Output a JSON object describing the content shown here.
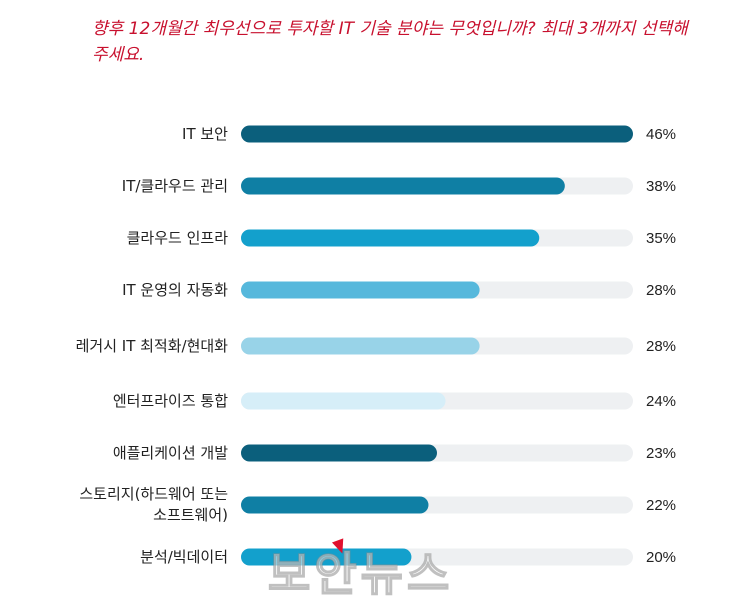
{
  "question": "향후 12개월간 최우선으로 투자할 IT 기술 분야는 무엇입니까? 최대 3개까지 선택해주세요.",
  "watermark": "보안뉴스",
  "chart_data": {
    "type": "bar",
    "orientation": "horizontal",
    "categories": [
      [
        "IT 보안"
      ],
      [
        "IT/클라우드 관리"
      ],
      [
        "클라우드 인프라"
      ],
      [
        "IT 운영의 자동화"
      ],
      [
        "레거시 IT 최적화/현대화"
      ],
      [
        "엔터프라이즈 통합"
      ],
      [
        "애플리케이션 개발"
      ],
      [
        "스토리지(하드웨어 또는",
        "소프트웨어)"
      ],
      [
        "분석/빅데이터"
      ]
    ],
    "values": [
      46,
      38,
      35,
      28,
      28,
      24,
      23,
      22,
      20
    ],
    "value_labels": [
      "46%",
      "38%",
      "35%",
      "28%",
      "28%",
      "24%",
      "23%",
      "22%",
      "20%"
    ],
    "xlim": [
      0,
      46
    ],
    "colors": [
      "#0b5f7c",
      "#0f7fa4",
      "#13a0cc",
      "#56b8dc",
      "#98d3e8",
      "#d6eef8",
      "#0b5f7c",
      "#0f7fa4",
      "#13a0cc"
    ],
    "track_color": "#eef0f2"
  }
}
